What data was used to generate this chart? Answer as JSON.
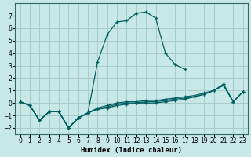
{
  "xlabel": "Humidex (Indice chaleur)",
  "x_values": [
    0,
    1,
    2,
    3,
    4,
    5,
    6,
    7,
    8,
    9,
    10,
    11,
    12,
    13,
    14,
    15,
    16,
    17,
    18,
    19,
    20,
    21,
    22,
    23
  ],
  "line_main": [
    0.1,
    -0.2,
    -1.4,
    -0.7,
    -0.7,
    -2.0,
    -1.2,
    -0.8,
    3.3,
    5.5,
    6.5,
    6.6,
    7.2,
    7.3,
    6.8,
    4.0,
    3.1,
    2.7,
    null,
    null,
    null,
    null,
    null,
    null
  ],
  "line_flat1": [
    0.1,
    -0.2,
    -1.4,
    -0.7,
    -0.7,
    -2.0,
    -1.2,
    -0.8,
    -0.5,
    -0.4,
    -0.2,
    -0.1,
    0.0,
    0.0,
    0.0,
    0.1,
    0.2,
    0.3,
    0.5,
    0.7,
    1.0,
    1.4,
    0.1,
    0.9
  ],
  "line_flat2": [
    0.1,
    -0.2,
    -1.4,
    -0.7,
    -0.7,
    -2.0,
    -1.2,
    -0.8,
    -0.5,
    -0.3,
    -0.1,
    0.0,
    0.0,
    0.1,
    0.1,
    0.2,
    0.3,
    0.4,
    0.5,
    0.7,
    1.0,
    1.5,
    0.1,
    0.9
  ],
  "line_flat3": [
    0.1,
    -0.2,
    -1.4,
    -0.7,
    -0.7,
    -2.0,
    -1.2,
    -0.8,
    -0.4,
    -0.2,
    0.0,
    0.1,
    0.1,
    0.2,
    0.2,
    0.3,
    0.4,
    0.5,
    0.6,
    0.8,
    1.0,
    1.5,
    0.1,
    0.9
  ],
  "background_color": "#c8e8e8",
  "grid_color": "#a8cccc",
  "line_color": "#006060",
  "ylim": [
    -2.5,
    8.0
  ],
  "xlim": [
    -0.5,
    23.5
  ],
  "yticks": [
    -2,
    -1,
    0,
    1,
    2,
    3,
    4,
    5,
    6,
    7
  ],
  "xticks": [
    0,
    1,
    2,
    3,
    4,
    5,
    6,
    7,
    8,
    9,
    10,
    11,
    12,
    13,
    14,
    15,
    16,
    17,
    18,
    19,
    20,
    21,
    22,
    23
  ]
}
